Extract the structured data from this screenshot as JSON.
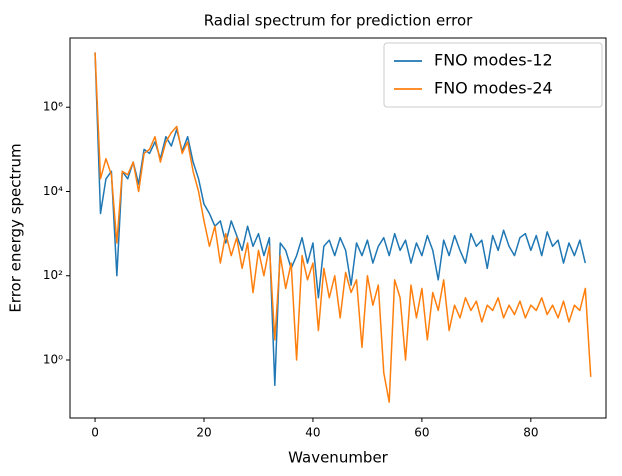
{
  "chart_data": {
    "type": "line",
    "title": "Radial spectrum for prediction error",
    "xlabel": "Wavenumber",
    "ylabel": "Error energy spectrum",
    "yscale": "log",
    "grid": false,
    "legend": "upper right",
    "xlim": [
      -4.6,
      93.8
    ],
    "ylim": [
      0.042,
      44000000
    ],
    "xticks": [
      0,
      20,
      40,
      60,
      80
    ],
    "yticks": [
      {
        "value": 1,
        "label": "10⁰"
      },
      {
        "value": 100,
        "label": "10²"
      },
      {
        "value": 10000,
        "label": "10⁴"
      },
      {
        "value": 1000000,
        "label": "10⁶"
      }
    ],
    "x": [
      0,
      1,
      2,
      3,
      4,
      5,
      6,
      7,
      8,
      9,
      10,
      11,
      12,
      13,
      14,
      15,
      16,
      17,
      18,
      19,
      20,
      21,
      22,
      23,
      24,
      25,
      26,
      27,
      28,
      29,
      30,
      31,
      32,
      33,
      34,
      35,
      36,
      37,
      38,
      39,
      40,
      41,
      42,
      43,
      44,
      45,
      46,
      47,
      48,
      49,
      50,
      51,
      52,
      53,
      54,
      55,
      56,
      57,
      58,
      59,
      60,
      61,
      62,
      63,
      64,
      65,
      66,
      67,
      68,
      69,
      70,
      71,
      72,
      73,
      74,
      75,
      76,
      77,
      78,
      79,
      80,
      81,
      82,
      83,
      84,
      85,
      86,
      87,
      88,
      89,
      90,
      91
    ],
    "series": [
      {
        "name": "FNO modes-12",
        "color": "#1f77b4",
        "values": [
          20000000,
          3000,
          20000,
          30000,
          100,
          30000,
          20000,
          50000,
          15000,
          100000,
          80000,
          150000,
          60000,
          200000,
          120000,
          300000,
          90000,
          200000,
          50000,
          20000,
          5000,
          3000,
          1500,
          2000,
          600,
          2000,
          900,
          400,
          1500,
          500,
          1000,
          300,
          800,
          0.25,
          600,
          400,
          150,
          300,
          800,
          200,
          600,
          30,
          500,
          700,
          300,
          800,
          400,
          60,
          600,
          300,
          700,
          200,
          500,
          800,
          300,
          1000,
          400,
          700,
          200,
          600,
          300,
          900,
          400,
          80,
          700,
          300,
          900,
          400,
          200,
          1000,
          500,
          700,
          150,
          900,
          400,
          1200,
          500,
          300,
          800,
          1000,
          400,
          900,
          300,
          1100,
          500,
          700,
          200,
          600,
          300,
          700,
          200,
          null
        ]
      },
      {
        "name": "FNO modes-24",
        "color": "#ff7f0e",
        "values": [
          20000000,
          20000,
          60000,
          25000,
          600,
          30000,
          25000,
          50000,
          10000,
          80000,
          100000,
          200000,
          50000,
          150000,
          250000,
          350000,
          80000,
          150000,
          30000,
          10000,
          2000,
          500,
          1500,
          200,
          1000,
          300,
          800,
          150,
          600,
          40,
          400,
          100,
          500,
          3,
          300,
          50,
          200,
          1,
          300,
          80,
          200,
          5,
          150,
          30,
          100,
          10,
          120,
          40,
          80,
          2,
          100,
          20,
          60,
          0.5,
          0.1,
          80,
          30,
          1,
          60,
          10,
          50,
          3,
          40,
          15,
          80,
          5,
          20,
          10,
          30,
          15,
          25,
          8,
          20,
          15,
          30,
          10,
          20,
          12,
          25,
          10,
          20,
          15,
          30,
          12,
          20,
          10,
          25,
          8,
          20,
          15,
          50,
          0.4
        ]
      }
    ]
  }
}
